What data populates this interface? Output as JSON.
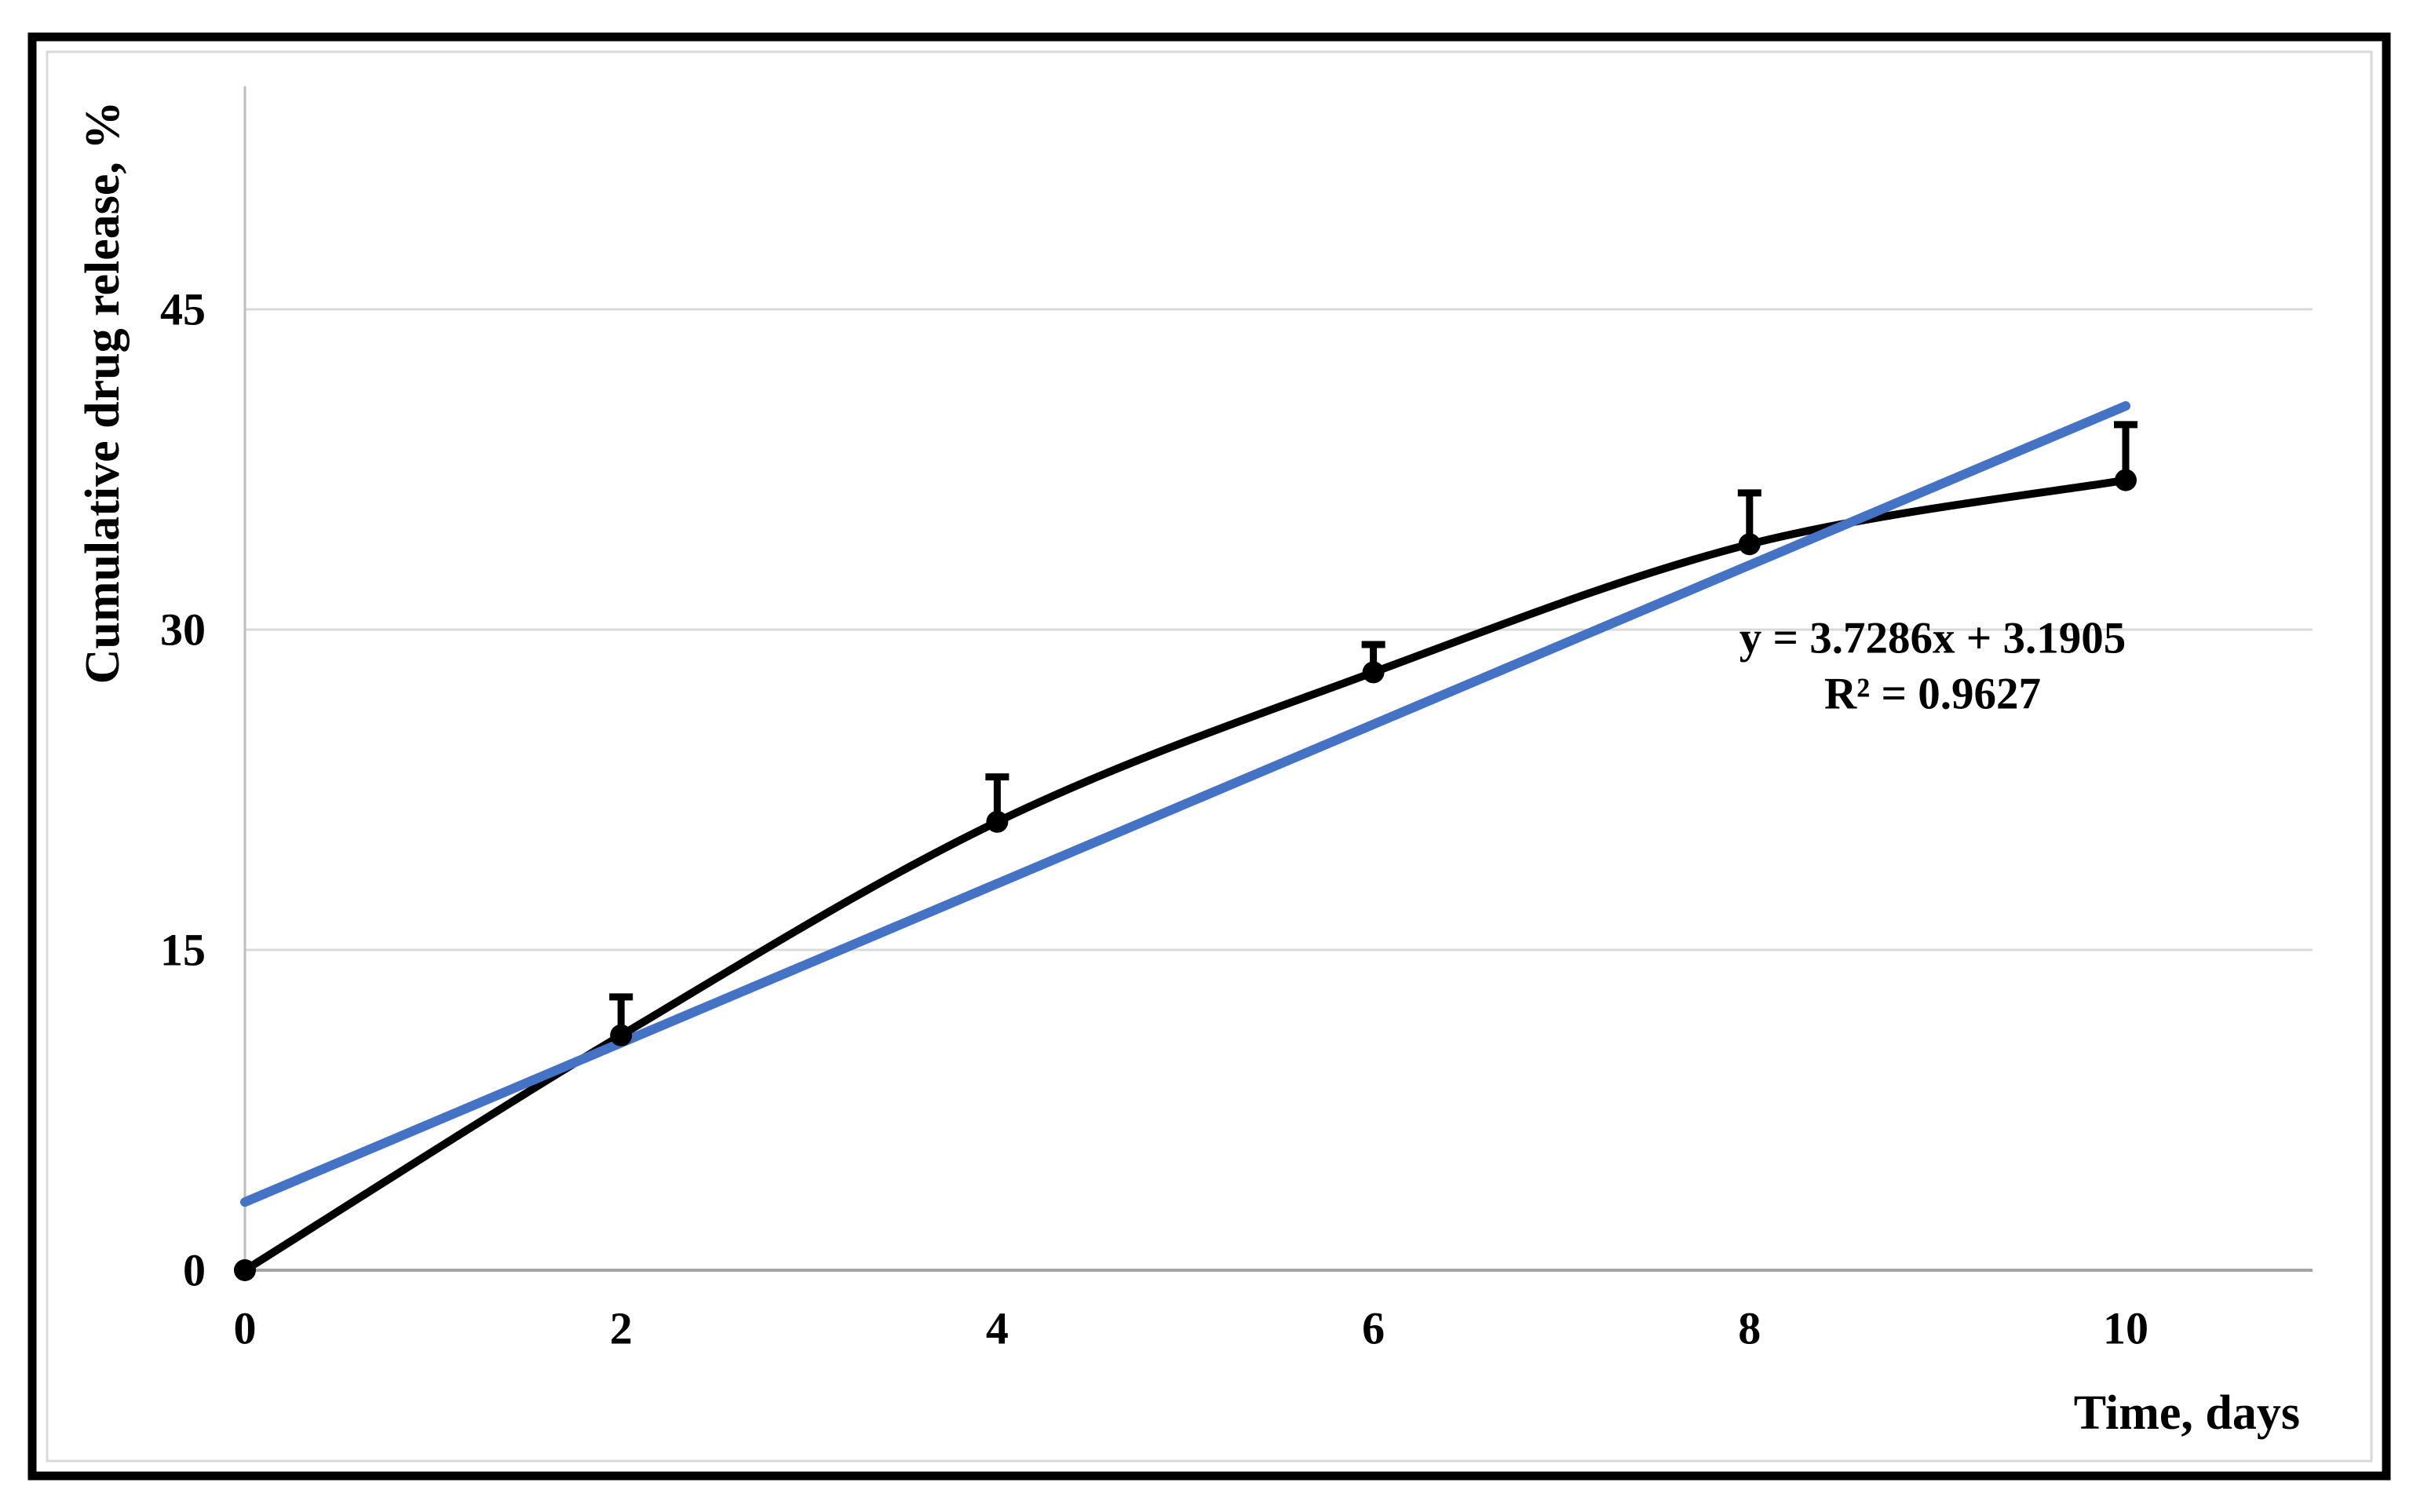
{
  "figure": {
    "background": "#ffffff",
    "frame_color": "#000000",
    "inner_border_color": "#d9d9d9"
  },
  "chart_data": {
    "type": "line",
    "title": "",
    "ylabel": "Cumulative drug release, %",
    "xlabel": "Time, days",
    "x": [
      0,
      2,
      4,
      6,
      8,
      10
    ],
    "series": [
      {
        "name": "Cumulative drug release",
        "values": [
          0,
          11,
          21,
          28,
          34,
          37
        ],
        "error_plus": [
          0,
          1.8,
          2.1,
          1.3,
          2.4,
          2.6
        ],
        "color": "#000000",
        "marker": "filled-circle",
        "smoothed": true
      },
      {
        "name": "Linear trendline",
        "slope": 3.7286,
        "intercept": 3.1905,
        "x_range": [
          0,
          10
        ],
        "color": "#4472C4"
      }
    ],
    "x_ticks": [
      "0",
      "2",
      "4",
      "6",
      "8",
      "10"
    ],
    "x_tick_values": [
      0,
      2,
      4,
      6,
      8,
      10
    ],
    "y_ticks": [
      "0",
      "15",
      "30",
      "45"
    ],
    "y_tick_values": [
      0,
      15,
      30,
      45
    ],
    "xlim": [
      0,
      11
    ],
    "ylim": [
      0,
      55
    ],
    "grid": "horizontal-only",
    "gridline_color": "#d9d9d9",
    "axis_line_color": "#bdbdbd",
    "annotation": {
      "equation": "y = 3.7286x + 3.1905",
      "r_squared": "R² = 0.9627"
    }
  }
}
